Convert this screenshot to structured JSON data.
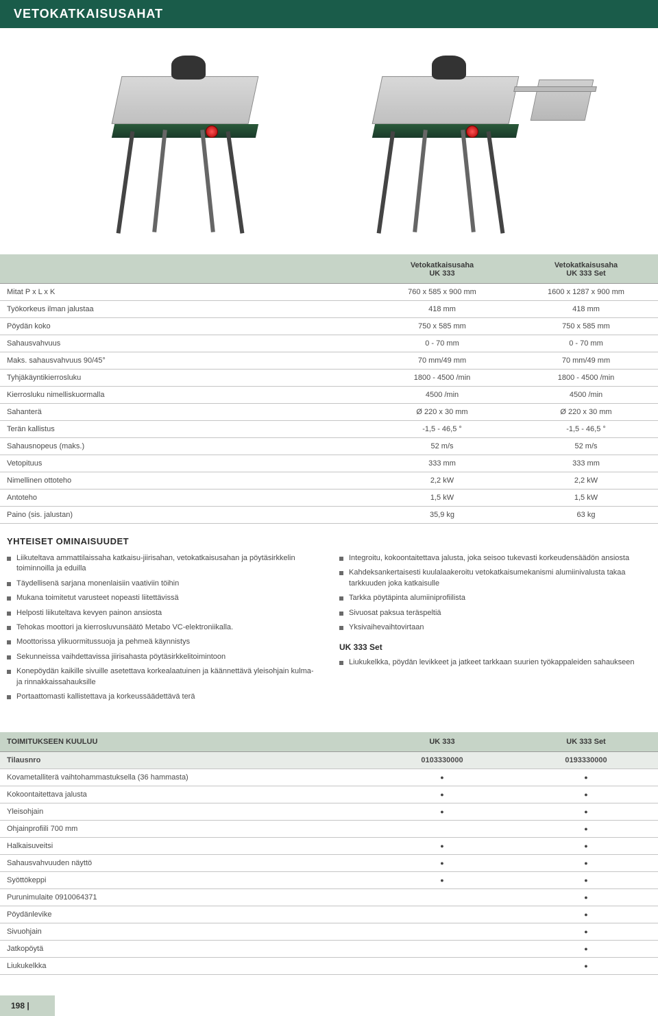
{
  "header": {
    "title": "VETOKATKAISUSAHAT"
  },
  "products": {
    "col1": {
      "name": "Vetokatkaisusaha",
      "model": "UK 333"
    },
    "col2": {
      "name": "Vetokatkaisusaha",
      "model": "UK 333 Set"
    }
  },
  "spec_rows": [
    {
      "label": "Mitat P x L x K",
      "v1": "760 x 585 x 900 mm",
      "v2": "1600 x 1287 x 900 mm"
    },
    {
      "label": "Työkorkeus ilman jalustaa",
      "v1": "418 mm",
      "v2": "418 mm"
    },
    {
      "label": "Pöydän koko",
      "v1": "750 x 585 mm",
      "v2": "750 x 585 mm"
    },
    {
      "label": "Sahausvahvuus",
      "v1": "0 - 70 mm",
      "v2": "0 - 70 mm"
    },
    {
      "label": "Maks. sahausvahvuus 90/45°",
      "v1": "70 mm/49 mm",
      "v2": "70 mm/49 mm"
    },
    {
      "label": "Tyhjäkäyntikierrosluku",
      "v1": "1800 - 4500 /min",
      "v2": "1800 - 4500 /min"
    },
    {
      "label": "Kierrosluku nimelliskuormalla",
      "v1": "4500 /min",
      "v2": "4500 /min"
    },
    {
      "label": "Sahanterä",
      "v1": "Ø 220 x 30 mm",
      "v2": "Ø 220 x 30 mm"
    },
    {
      "label": "Terän kallistus",
      "v1": "-1,5 - 46,5 °",
      "v2": "-1,5 - 46,5 °"
    },
    {
      "label": "Sahausnopeus (maks.)",
      "v1": "52 m/s",
      "v2": "52 m/s"
    },
    {
      "label": "Vetopituus",
      "v1": "333 mm",
      "v2": "333 mm"
    },
    {
      "label": "Nimellinen ottoteho",
      "v1": "2,2 kW",
      "v2": "2,2 kW"
    },
    {
      "label": "Antoteho",
      "v1": "1,5 kW",
      "v2": "1,5 kW"
    },
    {
      "label": "Paino (sis. jalustan)",
      "v1": "35,9 kg",
      "v2": "63 kg"
    }
  ],
  "features": {
    "title": "YHTEISET OMINAISUUDET",
    "left": [
      "Liikuteltava ammattilaissaha katkaisu-jiirisahan, vetokatkaisusahan ja pöytäsirkkelin toiminnoilla ja eduilla",
      "Täydellisenä sarjana monenlaisiin vaativiin töihin",
      "Mukana toimitetut varusteet nopeasti liitettävissä",
      "Helposti liikuteltava kevyen painon ansiosta",
      "Tehokas moottori ja kierrosluvunsäätö Metabo VC-elektroniikalla.",
      "Moottorissa ylikuormitussuoja ja pehmeä käynnistys",
      "Sekunneissa vaihdettavissa jiirisahasta pöytäsirkkelitoimintoon",
      "Konepöydän kaikille sivuille asetettava korkealaatuinen ja käännettävä yleisohjain kulma- ja rinnakkaissahauksille",
      "Portaattomasti kallistettava ja korkeussäädettävä terä"
    ],
    "right": [
      "Integroitu, kokoontaitettava jalusta, joka seisoo tukevasti korkeudensäädön ansiosta",
      "Kahdeksankertaisesti kuulalaakeroitu vetokatkaisumekanismi alumiinivalusta takaa tarkkuuden joka katkaisulle",
      "Tarkka pöytäpinta alumiiniprofiilista",
      "Sivuosat paksua teräspeltiä",
      "Yksivaihevaihtovirtaan"
    ],
    "sub_heading": "UK 333 Set",
    "sub_list": [
      "Liukukelkka, pöydän levikkeet ja jatkeet tarkkaan suurien työkappaleiden sahaukseen"
    ]
  },
  "delivery": {
    "header": {
      "label": "TOIMITUKSEEN KUULUU",
      "c1": "UK 333",
      "c2": "UK 333 Set"
    },
    "orderrow": {
      "label": "Tilausnro",
      "c1": "0103330000",
      "c2": "0193330000"
    },
    "rows": [
      {
        "label": "Kovametalliterä vaihtohammastuksella (36 hammasta)",
        "c1": true,
        "c2": true
      },
      {
        "label": "Kokoontaitettava jalusta",
        "c1": true,
        "c2": true
      },
      {
        "label": "Yleisohjain",
        "c1": true,
        "c2": true
      },
      {
        "label": "Ohjainprofiili 700 mm",
        "c1": false,
        "c2": true
      },
      {
        "label": "Halkaisuveitsi",
        "c1": true,
        "c2": true
      },
      {
        "label": "Sahausvahvuuden näyttö",
        "c1": true,
        "c2": true
      },
      {
        "label": "Syöttökeppi",
        "c1": true,
        "c2": true
      },
      {
        "label": "Purunimulaite 0910064371",
        "c1": false,
        "c2": true
      },
      {
        "label": "Pöydänlevike",
        "c1": false,
        "c2": true
      },
      {
        "label": "Sivuohjain",
        "c1": false,
        "c2": true
      },
      {
        "label": "Jatkopöytä",
        "c1": false,
        "c2": true
      },
      {
        "label": "Liukukelkka",
        "c1": false,
        "c2": true
      }
    ]
  },
  "page_number": "198 |",
  "colors": {
    "header_bg": "#1a5c4a",
    "panel_bg": "#c6d4c7",
    "row_border": "#c4c4c4",
    "text": "#4a4a4a"
  }
}
